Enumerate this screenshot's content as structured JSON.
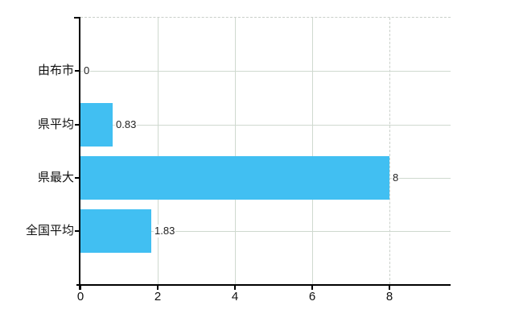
{
  "chart_data": {
    "type": "bar",
    "orientation": "horizontal",
    "title": "",
    "xlabel": "",
    "ylabel": "",
    "categories": [
      "由布市",
      "県平均",
      "県最大",
      "全国平均"
    ],
    "values": [
      0,
      0.83,
      8,
      1.83
    ],
    "value_labels": [
      "0",
      "0.83",
      "8",
      "1.83"
    ],
    "x_ticks": [
      0,
      2,
      4,
      6,
      8
    ],
    "x_tick_labels": [
      "0",
      "2",
      "4",
      "6",
      "8"
    ],
    "xlim": [
      0,
      9.58
    ],
    "grid": true,
    "legend": false,
    "dashed_vertical_gridline_at": 8,
    "colors": {
      "bar": "#41bff2",
      "gridline": "#cfd9cf",
      "dashed_line": "#c9cfc9",
      "axis": "#000000",
      "tick_text": "#111111",
      "value_text": "#222222",
      "background": "#ffffff"
    }
  }
}
